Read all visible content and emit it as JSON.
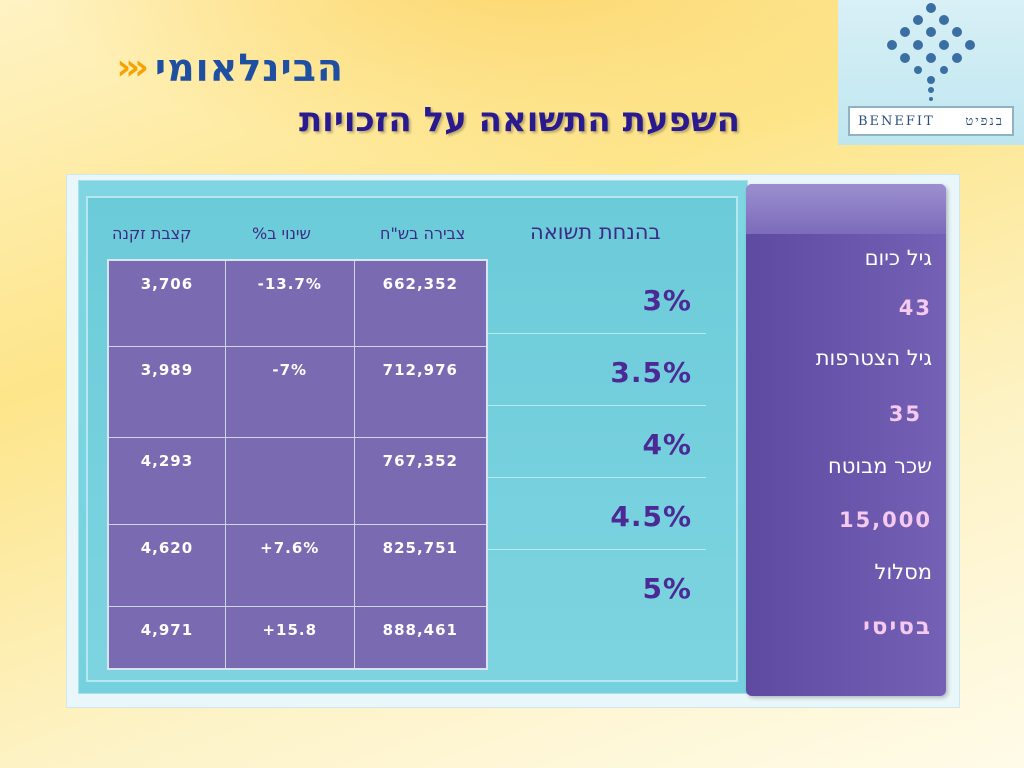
{
  "logo": {
    "brand_name": "הבינלאומי",
    "benefit_en": "BENEFIT",
    "benefit_he": "בנפיט"
  },
  "title": "השפעת התשואה על הזכויות",
  "profile": {
    "current_age_label": "גיל כיום",
    "current_age_value": "43",
    "join_age_label": "גיל הצטרפות",
    "join_age_value": "35",
    "salary_label": "שכר מבוטח",
    "salary_value": "15,000",
    "track_label": "מסלול",
    "track_value": "בסיסי"
  },
  "table": {
    "headers": {
      "yield": "בהנחת תשואה",
      "savings": "צבירה בש\"ח",
      "change": "שינוי ב%",
      "pension": "קצבת זקנה"
    },
    "rows": [
      {
        "yield": "3%",
        "savings": "662,352",
        "change": "-13.7%",
        "pension": "3,706"
      },
      {
        "yield": "3.5%",
        "savings": "712,976",
        "change": "-7%",
        "pension": "3,989"
      },
      {
        "yield": "4%",
        "savings": "767,352",
        "change": "",
        "pension": "4,293"
      },
      {
        "yield": "4.5%",
        "savings": "825,751",
        "change": "+7.6%",
        "pension": "4,620"
      },
      {
        "yield": "5%",
        "savings": "888,461",
        "change": "+15.8",
        "pension": "4,971"
      }
    ]
  },
  "colors": {
    "title": "#2a1a8f",
    "panel_teal": "#76d1de",
    "panel_purple": "#6a56ad",
    "yield_text": "#4b2a95",
    "side_value": "#f6c9ee"
  }
}
